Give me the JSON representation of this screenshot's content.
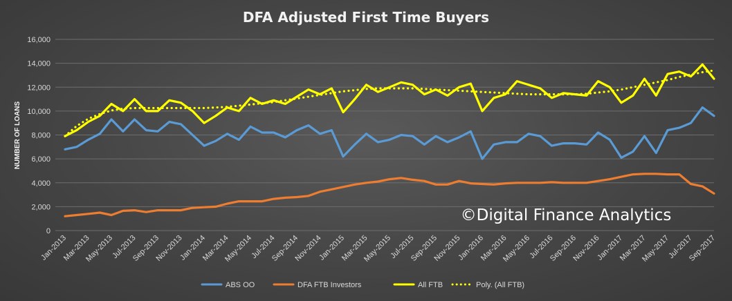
{
  "chart_data": {
    "type": "line",
    "title": "DFA Adjusted First Time Buyers",
    "ylabel": "NUMBER OF LOANS",
    "xlabel": "",
    "ylim": [
      0,
      16000
    ],
    "yticks": [
      0,
      2000,
      4000,
      6000,
      8000,
      10000,
      12000,
      14000,
      16000
    ],
    "ytick_labels": [
      "0",
      "2,000",
      "4,000",
      "6,000",
      "8,000",
      "10,000",
      "12,000",
      "14,000",
      "16,000"
    ],
    "grid": true,
    "legend_position": "bottom",
    "x": [
      "Jan-2013",
      "Feb-2013",
      "Mar-2013",
      "Apr-2013",
      "May-2013",
      "Jun-2013",
      "Jul-2013",
      "Aug-2013",
      "Sep-2013",
      "Oct-2013",
      "Nov-2013",
      "Dec-2013",
      "Jan-2014",
      "Feb-2014",
      "Mar-2014",
      "Apr-2014",
      "May-2014",
      "Jun-2014",
      "Jul-2014",
      "Aug-2014",
      "Sep-2014",
      "Oct-2014",
      "Nov-2014",
      "Dec-2014",
      "Jan-2015",
      "Feb-2015",
      "Mar-2015",
      "Apr-2015",
      "May-2015",
      "Jun-2015",
      "Jul-2015",
      "Aug-2015",
      "Sep-2015",
      "Oct-2015",
      "Nov-2015",
      "Dec-2015",
      "Jan-2016",
      "Feb-2016",
      "Mar-2016",
      "Apr-2016",
      "May-2016",
      "Jun-2016",
      "Jul-2016",
      "Aug-2016",
      "Sep-2016",
      "Oct-2016",
      "Nov-2016",
      "Dec-2016",
      "Jan-2017",
      "Feb-2017",
      "Mar-2017",
      "Apr-2017",
      "May-2017",
      "Jun-2017",
      "Jul-2017",
      "Aug-2017",
      "Sep-2017"
    ],
    "xtick_labels": [
      "Jan-2013",
      "Mar-2013",
      "May-2013",
      "Jul-2013",
      "Sep-2013",
      "Nov-2013",
      "Jan-2014",
      "Mar-2014",
      "May-2014",
      "Jul-2014",
      "Sep-2014",
      "Nov-2014",
      "Jan-2015",
      "Mar-2015",
      "May-2015",
      "Jul-2015",
      "Sep-2015",
      "Nov-2015",
      "Jan-2016",
      "Mar-2016",
      "May-2016",
      "Jul-2016",
      "Sep-2016",
      "Nov-2016",
      "Jan-2017",
      "Mar-2017",
      "May-2017",
      "Jul-2017",
      "Sep-2017"
    ],
    "series": [
      {
        "name": "ABS OO",
        "color": "#5b9bd5",
        "style": "solid",
        "values": [
          6800,
          7000,
          7600,
          8100,
          9300,
          8300,
          9300,
          8400,
          8300,
          9100,
          8900,
          8000,
          7100,
          7500,
          8100,
          7600,
          8700,
          8200,
          8200,
          7800,
          8400,
          8800,
          8100,
          8400,
          6200,
          7200,
          8100,
          7400,
          7600,
          8000,
          7900,
          7200,
          7900,
          7400,
          7800,
          8300,
          6000,
          7200,
          7400,
          7400,
          8100,
          7900,
          7100,
          7300,
          7300,
          7200,
          8200,
          7600,
          6100,
          6600,
          7900,
          6500,
          8400,
          8600,
          9000,
          10300,
          9600
        ]
      },
      {
        "name": "DFA FTB Investors",
        "color": "#ed7d31",
        "style": "solid",
        "values": [
          1200,
          1300,
          1400,
          1500,
          1300,
          1650,
          1700,
          1550,
          1700,
          1700,
          1700,
          1900,
          1950,
          2000,
          2250,
          2450,
          2450,
          2450,
          2650,
          2750,
          2800,
          2900,
          3250,
          3450,
          3650,
          3850,
          4000,
          4100,
          4300,
          4400,
          4250,
          4150,
          3850,
          3850,
          4150,
          3950,
          3900,
          3850,
          3950,
          4000,
          4000,
          4000,
          4050,
          4000,
          4000,
          4000,
          4150,
          4300,
          4500,
          4700,
          4750,
          4750,
          4700,
          4700,
          3900,
          3700,
          3100
        ]
      },
      {
        "name": "All FTB",
        "color": "#ffff00",
        "style": "solid",
        "values": [
          7900,
          8400,
          9100,
          9600,
          10600,
          10000,
          11000,
          10000,
          10000,
          10900,
          10700,
          10000,
          9000,
          9600,
          10300,
          10000,
          11100,
          10600,
          10900,
          10600,
          11200,
          11800,
          11400,
          11900,
          9900,
          11000,
          12200,
          11600,
          12000,
          12400,
          12200,
          11400,
          11800,
          11300,
          12000,
          12300,
          10000,
          11100,
          11400,
          12500,
          12200,
          11900,
          11100,
          11500,
          11400,
          11300,
          12500,
          12000,
          10700,
          11300,
          12700,
          11300,
          13100,
          13300,
          12900,
          13900,
          12700
        ]
      },
      {
        "name": "Poly. (All FTB)",
        "color": "#ffff00",
        "style": "dotted",
        "values": [
          7900,
          8750,
          9350,
          9750,
          10050,
          10200,
          10250,
          10250,
          10250,
          10250,
          10250,
          10250,
          10250,
          10300,
          10350,
          10450,
          10550,
          10650,
          10750,
          10900,
          11050,
          11200,
          11350,
          11500,
          11650,
          11750,
          11850,
          11900,
          11900,
          11900,
          11900,
          11850,
          11800,
          11750,
          11700,
          11650,
          11600,
          11550,
          11500,
          11450,
          11400,
          11400,
          11400,
          11400,
          11400,
          11450,
          11550,
          11650,
          11800,
          12000,
          12200,
          12400,
          12600,
          12850,
          13050,
          13250,
          13400
        ]
      }
    ],
    "annotations": [
      "©Digital Finance Analytics"
    ]
  }
}
